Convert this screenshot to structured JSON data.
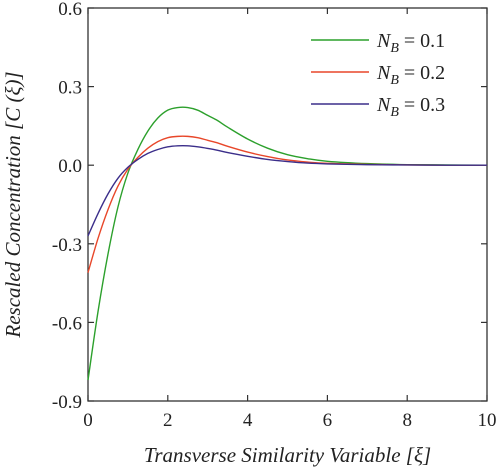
{
  "chart_data": {
    "type": "line",
    "xlabel": "Transverse Similarity Variable [ξ]",
    "ylabel": "Rescaled Concentration [C (ξ)]",
    "xlim": [
      0,
      10
    ],
    "ylim": [
      -0.9,
      0.6
    ],
    "xticks": [
      0,
      2,
      4,
      6,
      8,
      10
    ],
    "xtick_labels": [
      "0",
      "2",
      "4",
      "6",
      "8",
      "10"
    ],
    "yticks": [
      -0.9,
      -0.6,
      -0.3,
      0.0,
      0.3,
      0.6
    ],
    "ytick_labels": [
      "-0.9",
      "-0.6",
      "-0.3",
      "0.0",
      "0.3",
      "0.6"
    ],
    "grid": false,
    "legend_position": "top-right",
    "series": [
      {
        "name": "N_B = 0.1",
        "label_base": "N",
        "label_sub": "B",
        "label_rest": " = 0.1",
        "color": "#2ca02c",
        "x": [
          0,
          0.25,
          0.5,
          0.75,
          1,
          1.25,
          1.5,
          1.75,
          2,
          2.25,
          2.5,
          2.75,
          3,
          3.25,
          3.5,
          4,
          4.5,
          5,
          5.5,
          6,
          7,
          8,
          9,
          10
        ],
        "y": [
          -0.82,
          -0.56,
          -0.34,
          -0.16,
          -0.03,
          0.06,
          0.13,
          0.18,
          0.21,
          0.22,
          0.22,
          0.21,
          0.19,
          0.17,
          0.145,
          0.1,
          0.065,
          0.04,
          0.025,
          0.015,
          0.006,
          0.002,
          0.001,
          0.0
        ]
      },
      {
        "name": "N_B = 0.2",
        "label_base": "N",
        "label_sub": "B",
        "label_rest": " = 0.2",
        "color": "#e8472a",
        "x": [
          0,
          0.25,
          0.5,
          0.75,
          1,
          1.25,
          1.5,
          1.75,
          2,
          2.25,
          2.5,
          2.75,
          3,
          3.25,
          3.5,
          4,
          4.5,
          5,
          5.5,
          6,
          7,
          8,
          9,
          10
        ],
        "y": [
          -0.41,
          -0.28,
          -0.17,
          -0.08,
          -0.015,
          0.03,
          0.065,
          0.09,
          0.105,
          0.11,
          0.11,
          0.105,
          0.095,
          0.085,
          0.072,
          0.05,
          0.033,
          0.02,
          0.012,
          0.007,
          0.003,
          0.001,
          0.0,
          0.0
        ]
      },
      {
        "name": "N_B = 0.3",
        "label_base": "N",
        "label_sub": "B",
        "label_rest": " = 0.3",
        "color": "#3b2e8a",
        "x": [
          0,
          0.25,
          0.5,
          0.75,
          1,
          1.25,
          1.5,
          1.75,
          2,
          2.25,
          2.5,
          2.75,
          3,
          3.25,
          3.5,
          4,
          4.5,
          5,
          5.5,
          6,
          7,
          8,
          9,
          10
        ],
        "y": [
          -0.27,
          -0.185,
          -0.11,
          -0.05,
          -0.008,
          0.022,
          0.045,
          0.06,
          0.07,
          0.074,
          0.074,
          0.07,
          0.064,
          0.057,
          0.048,
          0.034,
          0.022,
          0.014,
          0.008,
          0.005,
          0.002,
          0.001,
          0.0,
          0.0
        ]
      }
    ]
  }
}
